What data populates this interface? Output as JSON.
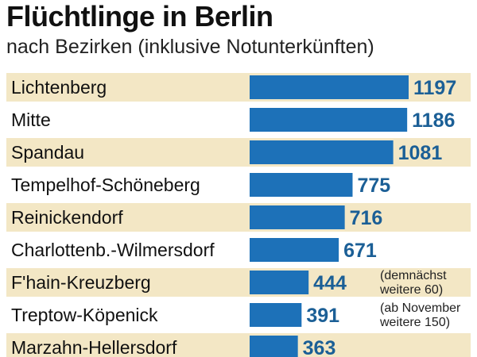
{
  "chart_data": {
    "type": "bar",
    "orientation": "horizontal",
    "title": "Flüchtlinge in Berlin",
    "subtitle": "nach Bezirken (inklusive Notunterkünften)",
    "categories": [
      "Lichtenberg",
      "Mitte",
      "Spandau",
      "Tempelhof-Schöneberg",
      "Reinickendorf",
      "Charlottenb.-Wilmersdorf",
      "F'hain-Kreuzberg",
      "Treptow-Köpenick",
      "Marzahn-Hellersdorf"
    ],
    "values": [
      1197,
      1186,
      1081,
      775,
      716,
      671,
      444,
      391,
      363
    ],
    "value_labels": [
      "1197",
      "1186",
      "1081",
      "775",
      "716",
      "671",
      "444",
      "391",
      "363"
    ],
    "annotations": [
      {
        "category": "F'hain-Kreuzberg",
        "lines": [
          "(demnächst",
          "weitere 60)"
        ]
      },
      {
        "category": "Treptow-Köpenick",
        "lines": [
          "(ab November",
          "weitere 150)"
        ]
      }
    ],
    "xlim": [
      0,
      1197
    ],
    "grid": false,
    "legend": "none",
    "colors": {
      "bar": "#1d71b8",
      "value_text": "#1b5f96",
      "row_band": "#f3e7c5",
      "title": "#111111"
    }
  }
}
